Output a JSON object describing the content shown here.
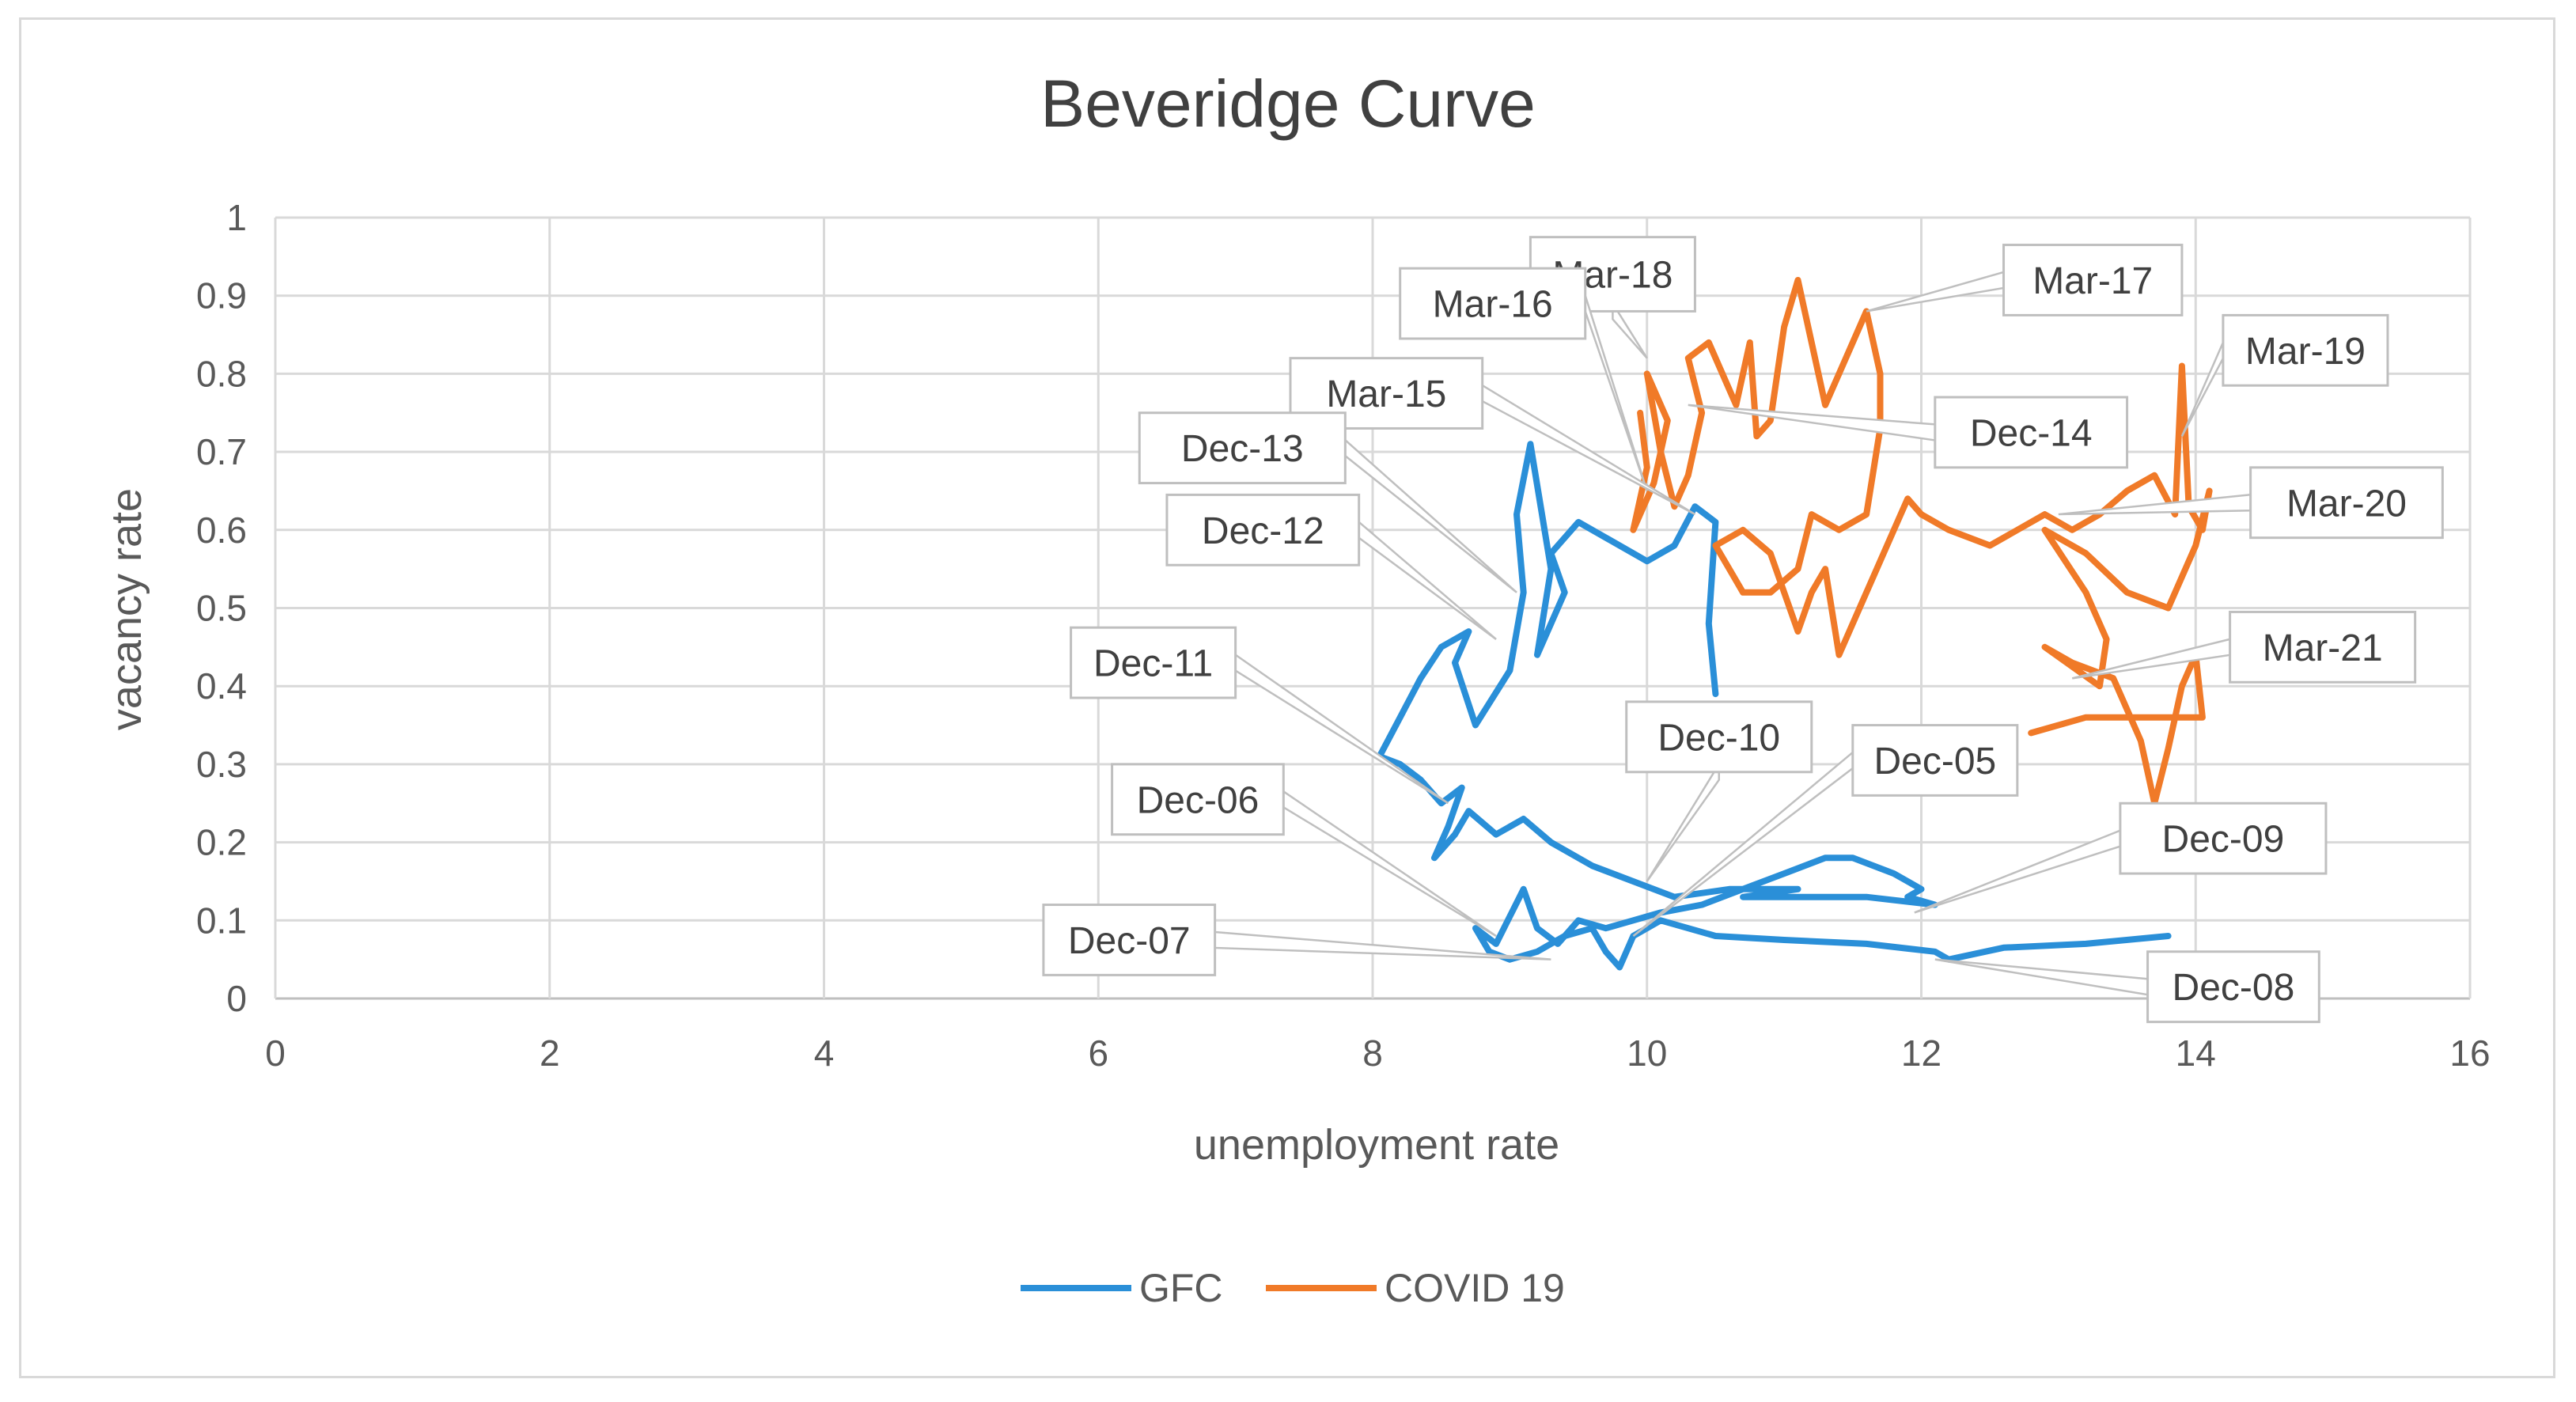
{
  "chart_data": {
    "type": "scatter",
    "title": "Beveridge Curve",
    "xlabel": "unemployment rate",
    "ylabel": "vacancy rate",
    "xlim": [
      0,
      16
    ],
    "ylim": [
      0,
      1
    ],
    "x_ticks": [
      "0",
      "2",
      "4",
      "6",
      "8",
      "10",
      "12",
      "14",
      "16"
    ],
    "y_ticks": [
      "0",
      "0.1",
      "0.2",
      "0.3",
      "0.4",
      "0.5",
      "0.6",
      "0.7",
      "0.8",
      "0.9",
      "1"
    ],
    "grid": true,
    "legend": "bottom",
    "series": [
      {
        "name": "GFC",
        "color": "#2a8fd8",
        "points": [
          [
            13.8,
            0.08
          ],
          [
            13.2,
            0.07
          ],
          [
            12.6,
            0.065
          ],
          [
            12.2,
            0.05
          ],
          [
            12.1,
            0.06
          ],
          [
            11.6,
            0.07
          ],
          [
            11.0,
            0.075
          ],
          [
            10.5,
            0.08
          ],
          [
            10.3,
            0.09
          ],
          [
            10.1,
            0.1
          ],
          [
            9.9,
            0.08
          ],
          [
            9.8,
            0.04
          ],
          [
            9.7,
            0.06
          ],
          [
            9.6,
            0.09
          ],
          [
            9.4,
            0.08
          ],
          [
            9.2,
            0.06
          ],
          [
            9.0,
            0.05
          ],
          [
            8.85,
            0.06
          ],
          [
            8.75,
            0.09
          ],
          [
            8.9,
            0.07
          ],
          [
            9.1,
            0.14
          ],
          [
            9.2,
            0.09
          ],
          [
            9.35,
            0.07
          ],
          [
            9.5,
            0.1
          ],
          [
            9.7,
            0.09
          ],
          [
            9.9,
            0.1
          ],
          [
            10.1,
            0.11
          ],
          [
            10.4,
            0.12
          ],
          [
            10.7,
            0.14
          ],
          [
            11.0,
            0.16
          ],
          [
            11.3,
            0.18
          ],
          [
            11.5,
            0.18
          ],
          [
            11.8,
            0.16
          ],
          [
            12.0,
            0.14
          ],
          [
            11.9,
            0.13
          ],
          [
            12.1,
            0.12
          ],
          [
            11.6,
            0.13
          ],
          [
            11.0,
            0.13
          ],
          [
            10.7,
            0.13
          ],
          [
            11.1,
            0.14
          ],
          [
            10.6,
            0.14
          ],
          [
            10.2,
            0.13
          ],
          [
            9.9,
            0.15
          ],
          [
            9.6,
            0.17
          ],
          [
            9.3,
            0.2
          ],
          [
            9.1,
            0.23
          ],
          [
            8.9,
            0.21
          ],
          [
            8.7,
            0.24
          ],
          [
            8.6,
            0.21
          ],
          [
            8.45,
            0.18
          ],
          [
            8.55,
            0.22
          ],
          [
            8.65,
            0.27
          ],
          [
            8.5,
            0.25
          ],
          [
            8.35,
            0.28
          ],
          [
            8.2,
            0.3
          ],
          [
            8.05,
            0.31
          ],
          [
            8.2,
            0.36
          ],
          [
            8.35,
            0.41
          ],
          [
            8.5,
            0.45
          ],
          [
            8.7,
            0.47
          ],
          [
            8.6,
            0.43
          ],
          [
            8.75,
            0.35
          ],
          [
            9.0,
            0.42
          ],
          [
            9.1,
            0.52
          ],
          [
            9.05,
            0.62
          ],
          [
            9.15,
            0.71
          ],
          [
            9.3,
            0.55
          ],
          [
            9.2,
            0.44
          ],
          [
            9.3,
            0.48
          ],
          [
            9.4,
            0.52
          ],
          [
            9.3,
            0.57
          ],
          [
            9.5,
            0.61
          ],
          [
            9.8,
            0.58
          ],
          [
            10.0,
            0.56
          ],
          [
            10.2,
            0.58
          ],
          [
            10.35,
            0.63
          ],
          [
            10.5,
            0.61
          ],
          [
            10.45,
            0.48
          ],
          [
            10.5,
            0.39
          ]
        ]
      },
      {
        "name": "COVID 19",
        "color": "#f07a28",
        "points": [
          [
            9.95,
            0.75
          ],
          [
            10.0,
            0.68
          ],
          [
            9.9,
            0.6
          ],
          [
            10.05,
            0.66
          ],
          [
            10.15,
            0.74
          ],
          [
            10.0,
            0.8
          ],
          [
            10.1,
            0.7
          ],
          [
            10.2,
            0.63
          ],
          [
            10.3,
            0.67
          ],
          [
            10.4,
            0.75
          ],
          [
            10.3,
            0.82
          ],
          [
            10.45,
            0.84
          ],
          [
            10.55,
            0.8
          ],
          [
            10.65,
            0.76
          ],
          [
            10.75,
            0.84
          ],
          [
            10.8,
            0.72
          ],
          [
            10.9,
            0.74
          ],
          [
            11.0,
            0.86
          ],
          [
            11.1,
            0.92
          ],
          [
            11.2,
            0.84
          ],
          [
            11.3,
            0.76
          ],
          [
            11.4,
            0.8
          ],
          [
            11.5,
            0.84
          ],
          [
            11.6,
            0.88
          ],
          [
            11.7,
            0.8
          ],
          [
            11.7,
            0.73
          ],
          [
            11.6,
            0.62
          ],
          [
            11.4,
            0.6
          ],
          [
            11.2,
            0.62
          ],
          [
            11.1,
            0.55
          ],
          [
            10.9,
            0.52
          ],
          [
            10.7,
            0.52
          ],
          [
            10.6,
            0.55
          ],
          [
            10.5,
            0.58
          ],
          [
            10.7,
            0.6
          ],
          [
            10.9,
            0.57
          ],
          [
            11.1,
            0.47
          ],
          [
            11.2,
            0.52
          ],
          [
            11.3,
            0.55
          ],
          [
            11.4,
            0.44
          ],
          [
            11.5,
            0.48
          ],
          [
            11.6,
            0.52
          ],
          [
            11.8,
            0.6
          ],
          [
            11.9,
            0.64
          ],
          [
            12.0,
            0.62
          ],
          [
            12.2,
            0.6
          ],
          [
            12.5,
            0.58
          ],
          [
            12.7,
            0.6
          ],
          [
            12.9,
            0.62
          ],
          [
            13.1,
            0.6
          ],
          [
            13.3,
            0.62
          ],
          [
            13.5,
            0.65
          ],
          [
            13.7,
            0.67
          ],
          [
            13.85,
            0.62
          ],
          [
            13.9,
            0.81
          ],
          [
            13.95,
            0.63
          ],
          [
            14.05,
            0.6
          ],
          [
            14.1,
            0.65
          ],
          [
            14.0,
            0.58
          ],
          [
            13.8,
            0.5
          ],
          [
            13.5,
            0.52
          ],
          [
            13.2,
            0.57
          ],
          [
            12.9,
            0.6
          ],
          [
            13.2,
            0.52
          ],
          [
            13.35,
            0.46
          ],
          [
            13.3,
            0.4
          ],
          [
            12.9,
            0.45
          ],
          [
            13.1,
            0.43
          ],
          [
            13.4,
            0.41
          ],
          [
            13.6,
            0.33
          ],
          [
            13.7,
            0.25
          ],
          [
            13.8,
            0.32
          ],
          [
            13.9,
            0.4
          ],
          [
            14.0,
            0.44
          ],
          [
            14.05,
            0.36
          ],
          [
            13.6,
            0.36
          ],
          [
            13.2,
            0.36
          ],
          [
            12.8,
            0.34
          ]
        ]
      }
    ],
    "annotations": [
      {
        "label": "Mar-18",
        "x": 10.0,
        "y": 0.82,
        "box": [
          9.15,
          0.975,
          10.35,
          0.88
        ]
      },
      {
        "label": "Mar-17",
        "x": 11.6,
        "y": 0.88,
        "box": [
          12.6,
          0.965,
          13.9,
          0.875
        ]
      },
      {
        "label": "Mar-16",
        "x": 10.0,
        "y": 0.65,
        "box": [
          8.2,
          0.935,
          9.55,
          0.845
        ]
      },
      {
        "label": "Mar-19",
        "x": 13.9,
        "y": 0.72,
        "box": [
          14.2,
          0.875,
          15.4,
          0.785
        ]
      },
      {
        "label": "Mar-15",
        "x": 10.35,
        "y": 0.62,
        "box": [
          7.4,
          0.82,
          8.8,
          0.73
        ]
      },
      {
        "label": "Dec-14",
        "x": 10.3,
        "y": 0.76,
        "box": [
          12.1,
          0.77,
          13.5,
          0.68
        ]
      },
      {
        "label": "Dec-13",
        "x": 9.05,
        "y": 0.52,
        "box": [
          6.3,
          0.75,
          7.8,
          0.66
        ]
      },
      {
        "label": "Mar-20",
        "x": 13.0,
        "y": 0.62,
        "box": [
          14.4,
          0.68,
          15.8,
          0.59
        ]
      },
      {
        "label": "Dec-12",
        "x": 8.9,
        "y": 0.46,
        "box": [
          6.5,
          0.645,
          7.9,
          0.555
        ]
      },
      {
        "label": "Mar-21",
        "x": 13.1,
        "y": 0.41,
        "box": [
          14.25,
          0.495,
          15.6,
          0.405
        ]
      },
      {
        "label": "Dec-11",
        "x": 8.55,
        "y": 0.25,
        "box": [
          5.8,
          0.475,
          7.0,
          0.385
        ]
      },
      {
        "label": "Dec-10",
        "x": 10.0,
        "y": 0.15,
        "box": [
          9.85,
          0.38,
          11.2,
          0.29
        ]
      },
      {
        "label": "Dec-05",
        "x": 9.9,
        "y": 0.08,
        "box": [
          11.5,
          0.35,
          12.7,
          0.26
        ]
      },
      {
        "label": "Dec-06",
        "x": 8.9,
        "y": 0.08,
        "box": [
          6.1,
          0.3,
          7.35,
          0.21
        ]
      },
      {
        "label": "Dec-09",
        "x": 11.95,
        "y": 0.11,
        "box": [
          13.45,
          0.25,
          14.95,
          0.16
        ]
      },
      {
        "label": "Dec-07",
        "x": 9.3,
        "y": 0.05,
        "box": [
          5.6,
          0.12,
          6.85,
          0.03
        ]
      },
      {
        "label": "Dec-08",
        "x": 12.1,
        "y": 0.05,
        "box": [
          13.65,
          0.06,
          14.9,
          -0.03
        ]
      }
    ]
  }
}
